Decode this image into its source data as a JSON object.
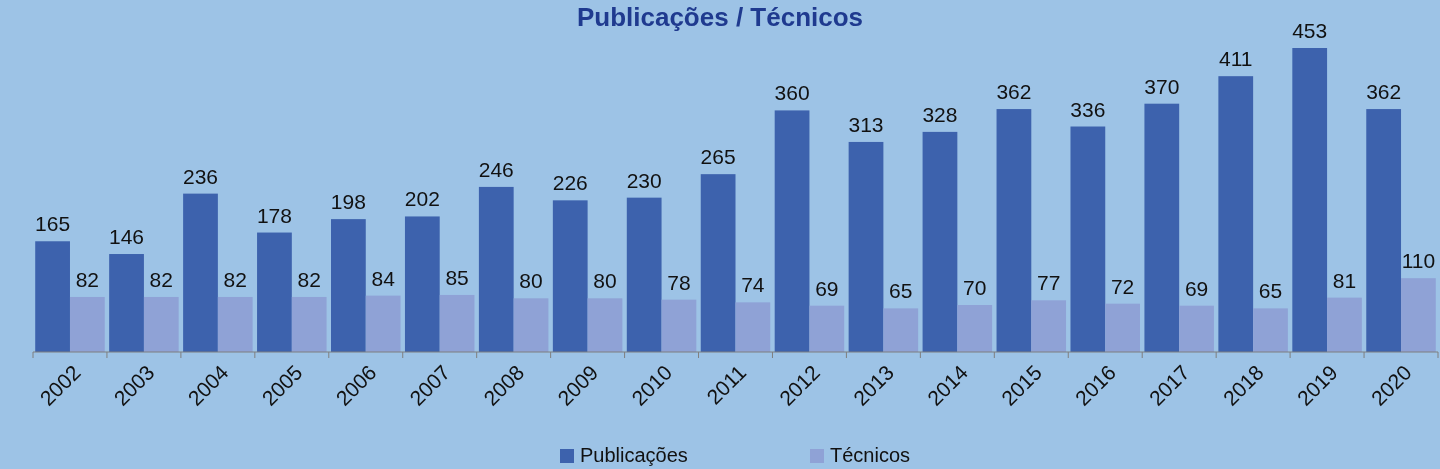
{
  "chart_data": {
    "type": "bar",
    "title": "Publicações / Técnicos",
    "categories": [
      "2002",
      "2003",
      "2004",
      "2005",
      "2006",
      "2007",
      "2008",
      "2009",
      "2010",
      "2011",
      "2012",
      "2013",
      "2014",
      "2015",
      "2016",
      "2017",
      "2018",
      "2019",
      "2020"
    ],
    "series": [
      {
        "name": "Publicações",
        "color": "#3d62ad",
        "values": [
          165,
          146,
          236,
          178,
          198,
          202,
          246,
          226,
          230,
          265,
          360,
          313,
          328,
          362,
          336,
          370,
          411,
          453,
          362
        ]
      },
      {
        "name": "Técnicos",
        "color": "#8fa2d6",
        "values": [
          82,
          82,
          82,
          82,
          84,
          85,
          80,
          80,
          78,
          74,
          69,
          65,
          70,
          77,
          72,
          69,
          65,
          81,
          110
        ]
      }
    ],
    "data_labels": true,
    "legend": "bottom"
  }
}
